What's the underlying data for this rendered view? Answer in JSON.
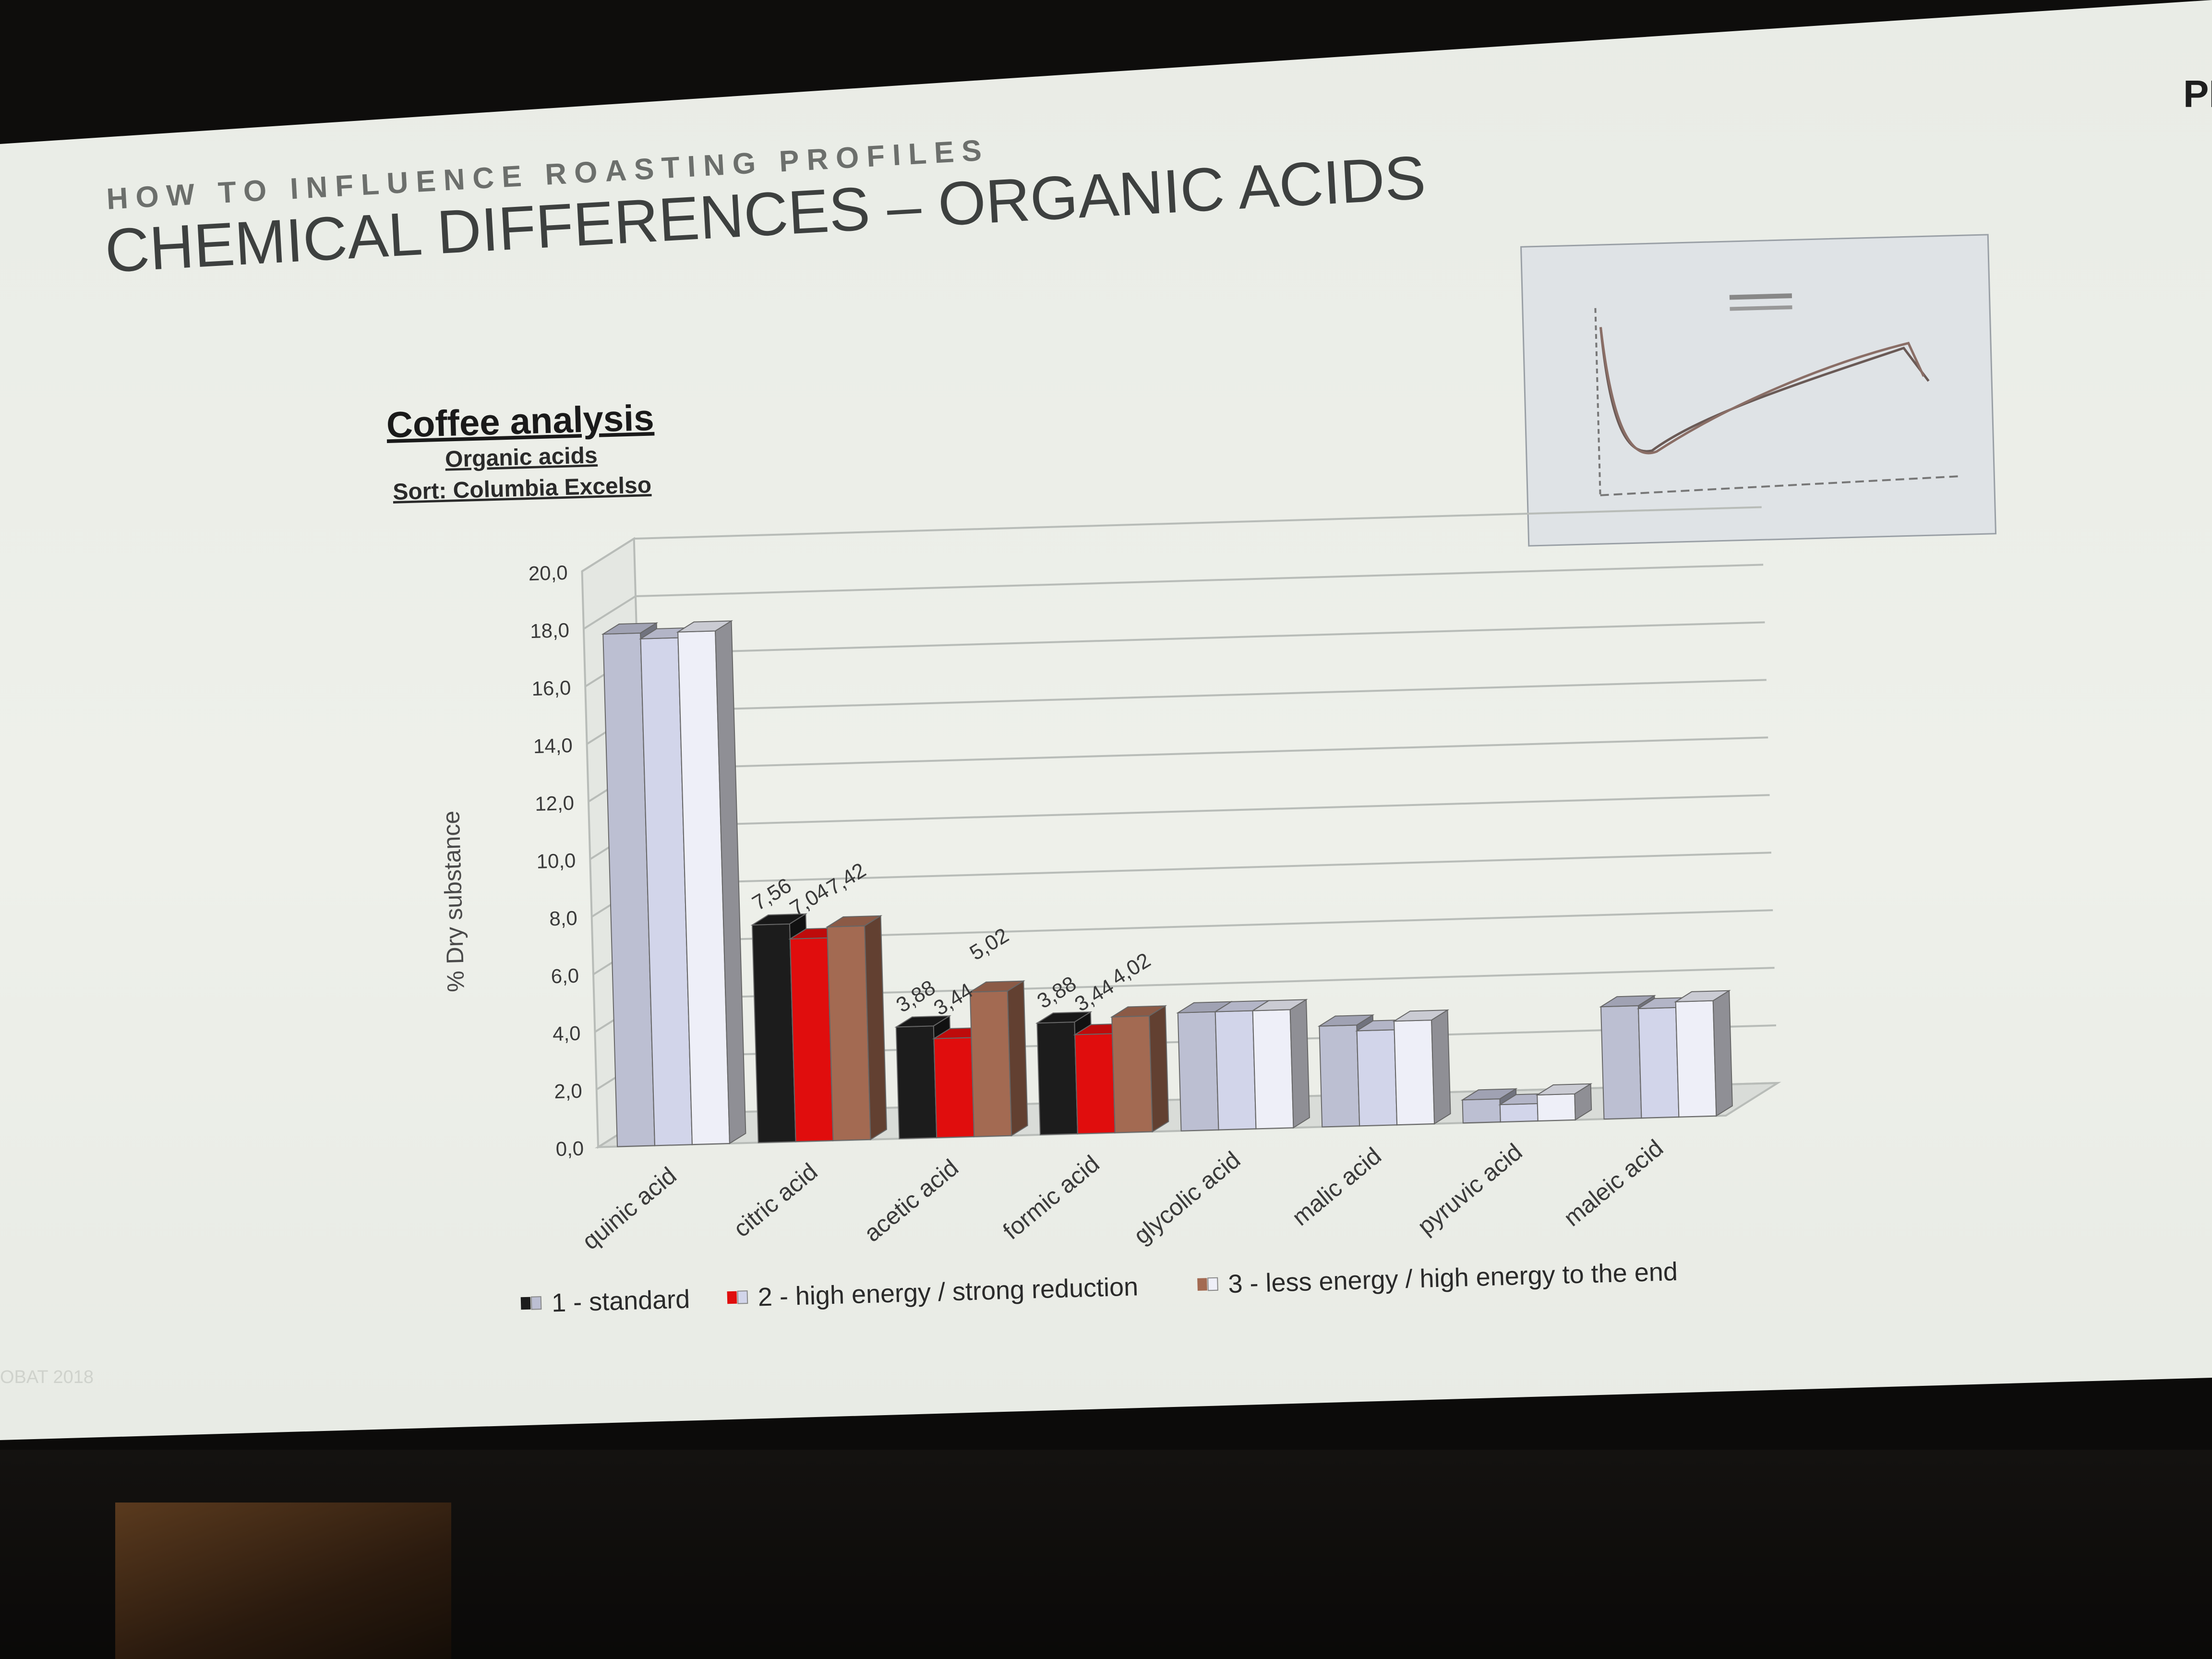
{
  "kicker": "HOW TO INFLUENCE ROASTING PROFILES",
  "headline": "CHEMICAL DIFFERENCES – ORGANIC ACIDS",
  "logo": "PI",
  "footer_note": "OBAT 2018",
  "chart_data": {
    "type": "bar",
    "title": "Coffee analysis",
    "subtitle": "Organic acids",
    "subtitle2": "Sort: Columbia Excelso",
    "ylabel": "% Dry substance",
    "xlabel": "",
    "ylim": [
      0,
      20
    ],
    "yticks": [
      "0,0",
      "2,0",
      "4,0",
      "6,0",
      "8,0",
      "10,0",
      "12,0",
      "14,0",
      "16,0",
      "18,0",
      "20,0"
    ],
    "grid": true,
    "legend_position": "bottom",
    "categories": [
      "quinic acid",
      "citric acid",
      "acetic acid",
      "formic acid",
      "glycolic acid",
      "malic acid",
      "pyruvic acid",
      "maleic acid"
    ],
    "series": [
      {
        "name": "1 - standard",
        "values": [
          17.8,
          7.56,
          3.88,
          3.88,
          4.1,
          3.5,
          0.8,
          3.9
        ]
      },
      {
        "name": "2 - high energy / strong reduction",
        "values": [
          17.6,
          7.04,
          3.44,
          3.44,
          4.1,
          3.3,
          0.6,
          3.8
        ]
      },
      {
        "name": "3 - less energy / high energy to the end",
        "values": [
          17.8,
          7.42,
          5.02,
          4.02,
          4.1,
          3.6,
          0.9,
          4.0
        ]
      }
    ],
    "data_labels": [
      {
        "category": "citric acid",
        "labels": [
          "7,56",
          "7,04",
          "7,42"
        ]
      },
      {
        "category": "acetic acid",
        "labels": [
          "3,88",
          "3,44",
          "5,02"
        ]
      },
      {
        "category": "formic acid",
        "labels": [
          "3,88",
          "3,44",
          "4,02"
        ]
      }
    ],
    "highlight_colors": {
      "s1": "#1c1c1c",
      "s2": "#e00d0d",
      "s3": "#a36a52"
    },
    "default_colors": {
      "s1": "#bcbfd2",
      "s2": "#d2d5ea",
      "s3": "#eeeff8"
    }
  }
}
